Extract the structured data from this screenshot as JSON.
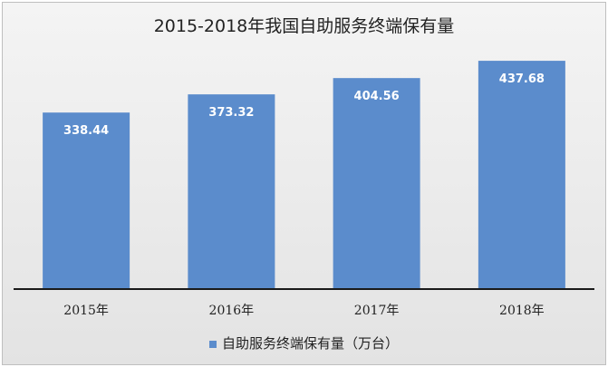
{
  "chart_data": {
    "type": "bar",
    "title": "2015-2018年我国自助服务终端保有量",
    "categories": [
      "2015年",
      "2016年",
      "2017年",
      "2018年"
    ],
    "series": [
      {
        "name": "自助服务终端保有量（万台）",
        "values": [
          338.44,
          373.32,
          404.56,
          437.68
        ],
        "color": "#5b8ccc"
      }
    ],
    "data_labels": [
      "338.44",
      "373.32",
      "404.56",
      "437.68"
    ],
    "ylim": [
      0,
      450
    ],
    "grid": false,
    "legend_position": "bottom"
  }
}
